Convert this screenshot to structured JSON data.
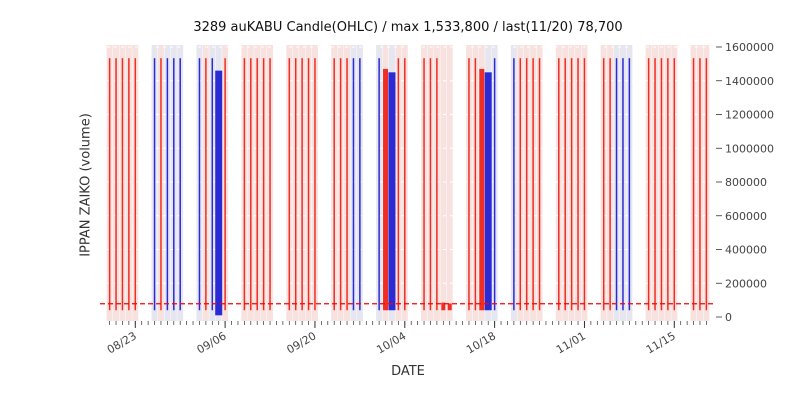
{
  "chart_data": {
    "type": "bar",
    "style": "ohlc-candle-volume",
    "title": "3289 auKABU Candle(OHLC) / max 1,533,800 / last(11/20) 78,700",
    "xlabel": "DATE",
    "ylabel": "IPPAN ZAIKO (volume)",
    "ylim": [
      0,
      1600000
    ],
    "yticks": [
      0,
      200000,
      400000,
      600000,
      800000,
      1000000,
      1200000,
      1400000,
      1600000
    ],
    "xticks": [
      "08/23",
      "09/06",
      "09/20",
      "10/04",
      "10/18",
      "11/01",
      "11/15"
    ],
    "grid": "horizontal-dashed-white",
    "legend": "none",
    "reference_line": {
      "value": 78700,
      "color": "#ff0000",
      "style": "dashed"
    },
    "annotations": {
      "max": 1533800,
      "last_date": "11/20",
      "last_value": 78700
    },
    "colors": {
      "red": "#ee2e24",
      "blue": "#2b2bd6",
      "red_band": "#f8e2df",
      "blue_band": "#e6e6f1",
      "grid": "#ffffff",
      "tick": "#444444",
      "ref": "#ff0000"
    },
    "bar_defaults": {
      "hi": 1533800,
      "lo": 40000,
      "w": 1.5
    },
    "bars": [
      {
        "d": "08/19",
        "c": "r"
      },
      {
        "d": "08/20",
        "c": "r"
      },
      {
        "d": "08/21",
        "c": "r"
      },
      {
        "d": "08/22",
        "c": "r"
      },
      {
        "d": "08/23",
        "c": "r"
      },
      {
        "d": "08/26",
        "c": "b"
      },
      {
        "d": "08/27",
        "c": "r"
      },
      {
        "d": "08/28",
        "c": "b"
      },
      {
        "d": "08/29",
        "c": "b"
      },
      {
        "d": "08/30",
        "c": "b"
      },
      {
        "d": "09/02",
        "c": "b"
      },
      {
        "d": "09/03",
        "c": "r"
      },
      {
        "d": "09/04",
        "c": "b"
      },
      {
        "d": "09/05",
        "c": "b",
        "hi": 1460000,
        "lo": 10000,
        "w": 7
      },
      {
        "d": "09/06",
        "c": "r"
      },
      {
        "d": "09/09",
        "c": "r"
      },
      {
        "d": "09/10",
        "c": "r"
      },
      {
        "d": "09/11",
        "c": "r"
      },
      {
        "d": "09/12",
        "c": "r"
      },
      {
        "d": "09/13",
        "c": "r"
      },
      {
        "d": "09/16",
        "c": "r"
      },
      {
        "d": "09/17",
        "c": "r"
      },
      {
        "d": "09/18",
        "c": "r"
      },
      {
        "d": "09/19",
        "c": "r"
      },
      {
        "d": "09/20",
        "c": "r"
      },
      {
        "d": "09/23",
        "c": "r"
      },
      {
        "d": "09/24",
        "c": "r"
      },
      {
        "d": "09/25",
        "c": "r"
      },
      {
        "d": "09/26",
        "c": "b"
      },
      {
        "d": "09/27",
        "c": "b"
      },
      {
        "d": "09/30",
        "c": "b"
      },
      {
        "d": "10/01",
        "c": "r",
        "hi": 1470000,
        "w": 5
      },
      {
        "d": "10/02",
        "c": "b",
        "hi": 1450000,
        "w": 7
      },
      {
        "d": "10/03",
        "c": "r"
      },
      {
        "d": "10/04",
        "c": "r"
      },
      {
        "d": "10/07",
        "c": "r"
      },
      {
        "d": "10/08",
        "c": "r"
      },
      {
        "d": "10/09",
        "c": "r"
      },
      {
        "d": "10/10",
        "c": "r",
        "hi": 85000,
        "w": 4
      },
      {
        "d": "10/11",
        "c": "r",
        "hi": 80000,
        "w": 4
      },
      {
        "d": "10/14",
        "c": "r"
      },
      {
        "d": "10/15",
        "c": "r"
      },
      {
        "d": "10/16",
        "c": "r",
        "hi": 1470000,
        "w": 5
      },
      {
        "d": "10/17",
        "c": "b",
        "hi": 1450000,
        "w": 7
      },
      {
        "d": "10/18",
        "c": "b"
      },
      {
        "d": "10/21",
        "c": "b"
      },
      {
        "d": "10/22",
        "c": "r"
      },
      {
        "d": "10/23",
        "c": "r"
      },
      {
        "d": "10/24",
        "c": "r"
      },
      {
        "d": "10/25",
        "c": "r"
      },
      {
        "d": "10/28",
        "c": "r"
      },
      {
        "d": "10/29",
        "c": "r"
      },
      {
        "d": "10/30",
        "c": "r"
      },
      {
        "d": "10/31",
        "c": "r"
      },
      {
        "d": "11/01",
        "c": "r"
      },
      {
        "d": "11/04",
        "c": "r"
      },
      {
        "d": "11/05",
        "c": "r"
      },
      {
        "d": "11/06",
        "c": "b"
      },
      {
        "d": "11/07",
        "c": "b"
      },
      {
        "d": "11/08",
        "c": "b"
      },
      {
        "d": "11/11",
        "c": "r"
      },
      {
        "d": "11/12",
        "c": "r"
      },
      {
        "d": "11/13",
        "c": "r"
      },
      {
        "d": "11/14",
        "c": "r"
      },
      {
        "d": "11/15",
        "c": "r"
      },
      {
        "d": "11/18",
        "c": "r"
      },
      {
        "d": "11/19",
        "c": "r"
      },
      {
        "d": "11/20",
        "c": "r"
      }
    ]
  }
}
